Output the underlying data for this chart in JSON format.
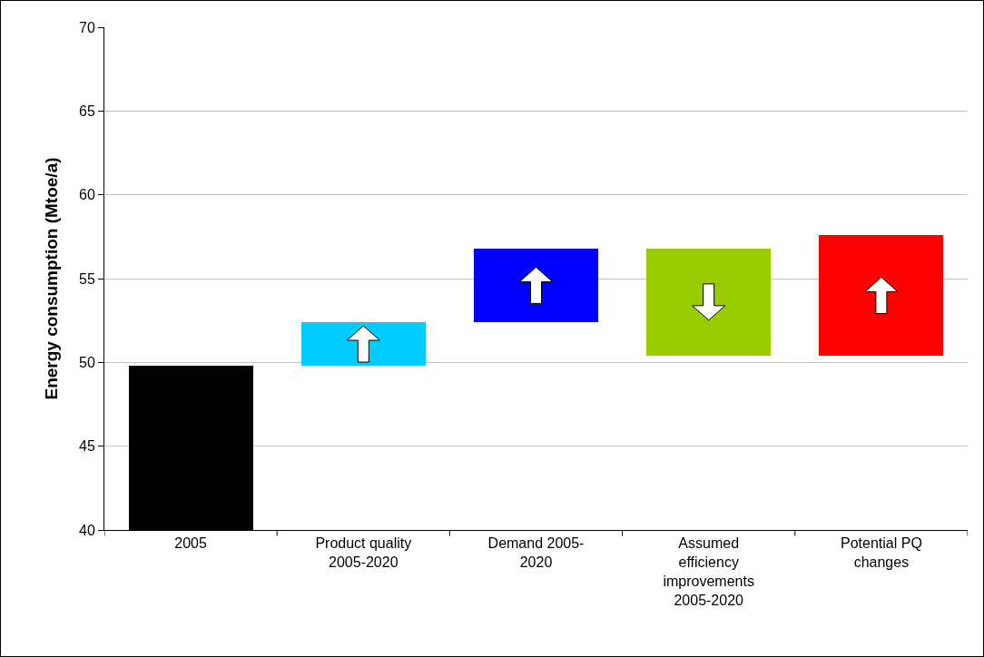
{
  "chart_data": {
    "type": "bar",
    "ylabel": "Energy consumption (Mtoe/a)",
    "categories": [
      "2005",
      "Product quality 2005-2020",
      "Demand 2005-2020",
      "Assumed efficiency improvements 2005-2020",
      "Potential PQ changes"
    ],
    "values": [
      9.8,
      2.6,
      4.4,
      -6.4,
      7.2
    ],
    "base": [
      40,
      49.8,
      52.4,
      56.8,
      50.4
    ],
    "colors": [
      "#000000",
      "#00ccff",
      "#0000ff",
      "#99cc00",
      "#ff0000"
    ],
    "ylim": [
      40,
      70
    ],
    "yticks": [
      40,
      45,
      50,
      55,
      60,
      65,
      70
    ],
    "grid": "y"
  }
}
